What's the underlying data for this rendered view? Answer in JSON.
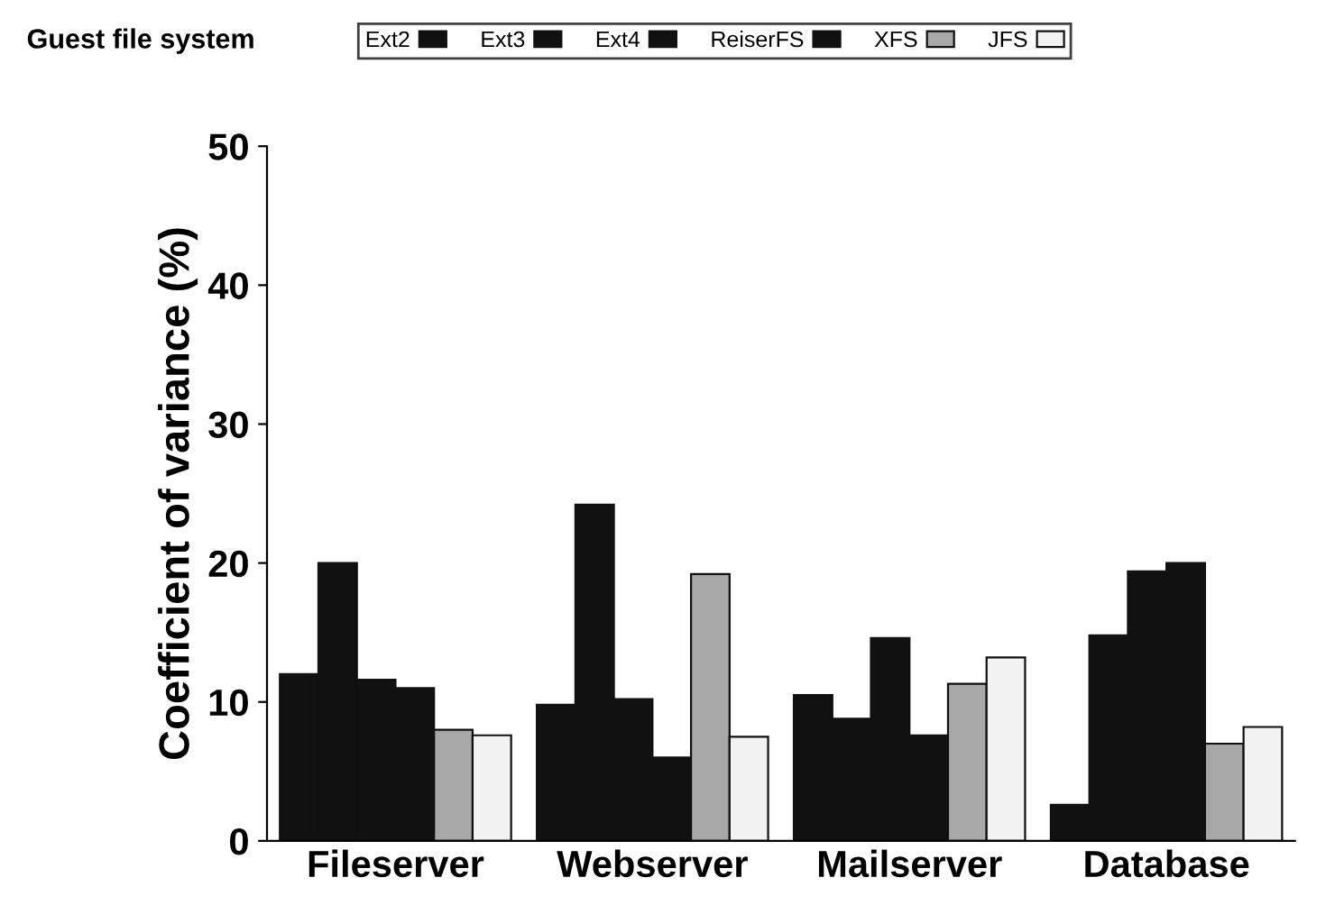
{
  "chart_data": {
    "type": "bar",
    "ylabel": "Coefficient of variance (%)",
    "legend_title": "Guest file system",
    "categories": [
      "Fileserver",
      "Webserver",
      "Mailserver",
      "Database"
    ],
    "series": [
      {
        "name": "Ext2",
        "color": "#111111",
        "values": [
          12,
          9.8,
          10.5,
          2.6
        ]
      },
      {
        "name": "Ext3",
        "color": "#111111",
        "values": [
          20,
          24.2,
          8.8,
          14.8
        ]
      },
      {
        "name": "Ext4",
        "color": "#111111",
        "values": [
          11.6,
          10.2,
          14.6,
          19.4
        ]
      },
      {
        "name": "ReiserFS",
        "color": "#111111",
        "values": [
          11,
          6,
          7.6,
          20
        ]
      },
      {
        "name": "XFS",
        "color": "#a8a8a8",
        "values": [
          8,
          19.2,
          11.3,
          7
        ]
      },
      {
        "name": "JFS",
        "color": "#f2f2f2",
        "values": [
          7.6,
          7.5,
          13.2,
          8.2
        ]
      }
    ],
    "ylim": [
      0,
      50
    ],
    "yticks": [
      0,
      10,
      20,
      30,
      40,
      50
    ],
    "grid": false,
    "legend": "top"
  }
}
